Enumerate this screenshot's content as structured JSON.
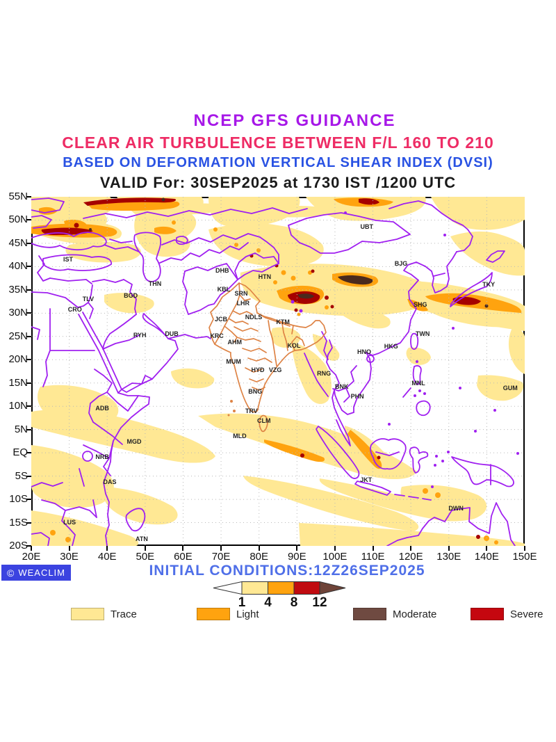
{
  "header": {
    "line1": {
      "text": "NCEP GFS GUIDANCE",
      "color": "#A718E8"
    },
    "line2": {
      "text": "CLEAR AIR TURBULENCE BETWEEN F/L 160 TO 210",
      "color": "#EE2C65"
    },
    "line3": {
      "text": "BASED ON DEFORMATION VERTICAL SHEAR INDEX (DVSI)",
      "color": "#2952E3"
    },
    "line4": {
      "text": "VALID For: 30SEP2025 at 1730 IST /1200 UTC",
      "color": "#1a1a1a"
    }
  },
  "footer": {
    "logo_symbol": "©",
    "logo_text": "WEACLIM",
    "logo_bg": "#3B43E0",
    "initial_conditions": "INITIAL CONDITIONS:12Z26SEP2025",
    "initial_conditions_color": "#4F6FE8"
  },
  "colorbar": {
    "tick_values": [
      "1",
      "4",
      "8",
      "12"
    ],
    "segment_colors": [
      "#ffffff",
      "#FFE894",
      "#FFA30F",
      "#C00B10",
      "#6E4338"
    ]
  },
  "legend": {
    "items": [
      {
        "label": "Trace",
        "color": "#FFE894"
      },
      {
        "label": "Light",
        "color": "#FFA30F"
      },
      {
        "label": "Moderate",
        "color": "#6F4A41"
      },
      {
        "label": "Severe",
        "color": "#C5070F"
      }
    ]
  },
  "map_colors": {
    "border": "#A020F0",
    "south_asia_border": "#DE8345",
    "trace": "#FFE894",
    "light": "#FFA30F",
    "severe_core": "#A50000",
    "moderate_core": "#4A2A1D",
    "grid": "#B8B8B8",
    "frame": "#000000",
    "station_text": "#222222"
  },
  "chart_data": {
    "type": "heatmap",
    "title": "NCEP GFS GUIDANCE",
    "subtitle": "CLEAR AIR TURBULENCE BETWEEN F/L 160 TO 210",
    "method": "BASED ON DEFORMATION VERTICAL SHEAR INDEX (DVSI)",
    "valid": "VALID For: 30SEP2025 at 1730 IST /1200 UTC",
    "initial_conditions": "12Z26SEP2025",
    "legend_position": "bottom",
    "grid": true,
    "x_axis": {
      "unit": "degrees East",
      "range": [
        20,
        150
      ],
      "ticks": [
        {
          "label": "20E",
          "value": 20
        },
        {
          "label": "30E",
          "value": 30
        },
        {
          "label": "40E",
          "value": 40
        },
        {
          "label": "50E",
          "value": 50
        },
        {
          "label": "60E",
          "value": 60
        },
        {
          "label": "70E",
          "value": 70
        },
        {
          "label": "80E",
          "value": 80
        },
        {
          "label": "90E",
          "value": 90
        },
        {
          "label": "100E",
          "value": 100
        },
        {
          "label": "110E",
          "value": 110
        },
        {
          "label": "120E",
          "value": 120
        },
        {
          "label": "130E",
          "value": 130
        },
        {
          "label": "140E",
          "value": 140
        },
        {
          "label": "150E",
          "value": 150
        }
      ]
    },
    "y_axis": {
      "unit": "degrees North",
      "range": [
        -20,
        55
      ],
      "ticks": [
        {
          "label": "55N",
          "value": 55
        },
        {
          "label": "50N",
          "value": 50
        },
        {
          "label": "45N",
          "value": 45
        },
        {
          "label": "40N",
          "value": 40
        },
        {
          "label": "35N",
          "value": 35
        },
        {
          "label": "30N",
          "value": 30
        },
        {
          "label": "25N",
          "value": 25
        },
        {
          "label": "20N",
          "value": 20
        },
        {
          "label": "15N",
          "value": 15
        },
        {
          "label": "10N",
          "value": 10
        },
        {
          "label": "5N",
          "value": 5
        },
        {
          "label": "EQ",
          "value": 0
        },
        {
          "label": "5S",
          "value": -5
        },
        {
          "label": "10S",
          "value": -10
        },
        {
          "label": "15S",
          "value": -15
        },
        {
          "label": "20S",
          "value": -20
        }
      ]
    },
    "intensity_scale": {
      "values": [
        1,
        4,
        8,
        12
      ],
      "categories": [
        "Trace",
        "Light",
        "Moderate",
        "Severe"
      ]
    },
    "stations": [
      {
        "code": "IST",
        "lon": 29.7,
        "lat": 41.6
      },
      {
        "code": "CRO",
        "lon": 31.5,
        "lat": 30.8
      },
      {
        "code": "TLV",
        "lon": 35.0,
        "lat": 33.0
      },
      {
        "code": "BGD",
        "lon": 46.2,
        "lat": 33.8
      },
      {
        "code": "THN",
        "lon": 52.6,
        "lat": 36.3
      },
      {
        "code": "RYH",
        "lon": 48.6,
        "lat": 25.3
      },
      {
        "code": "DUB",
        "lon": 57.0,
        "lat": 25.6
      },
      {
        "code": "DHB",
        "lon": 70.3,
        "lat": 39.2
      },
      {
        "code": "KBL",
        "lon": 70.7,
        "lat": 35.1
      },
      {
        "code": "SRN",
        "lon": 75.3,
        "lat": 34.2
      },
      {
        "code": "LHR",
        "lon": 75.8,
        "lat": 32.1
      },
      {
        "code": "HTN",
        "lon": 81.5,
        "lat": 37.8
      },
      {
        "code": "UBT",
        "lon": 108.4,
        "lat": 48.6
      },
      {
        "code": "BJG",
        "lon": 117.4,
        "lat": 40.7
      },
      {
        "code": "TKY",
        "lon": 140.5,
        "lat": 36.2
      },
      {
        "code": "SHG",
        "lon": 122.5,
        "lat": 31.8
      },
      {
        "code": "TWN",
        "lon": 123.1,
        "lat": 25.6
      },
      {
        "code": "HKG",
        "lon": 114.8,
        "lat": 22.9
      },
      {
        "code": "HNO",
        "lon": 107.7,
        "lat": 21.7
      },
      {
        "code": "JCB",
        "lon": 70.0,
        "lat": 28.7
      },
      {
        "code": "NDLS",
        "lon": 78.6,
        "lat": 29.2
      },
      {
        "code": "KTM",
        "lon": 86.3,
        "lat": 28.1
      },
      {
        "code": "KRC",
        "lon": 68.9,
        "lat": 25.1
      },
      {
        "code": "AHM",
        "lon": 73.6,
        "lat": 23.8
      },
      {
        "code": "KOL",
        "lon": 89.2,
        "lat": 23.0
      },
      {
        "code": "MUM",
        "lon": 73.3,
        "lat": 19.6
      },
      {
        "code": "HYD",
        "lon": 79.7,
        "lat": 17.8
      },
      {
        "code": "VZG",
        "lon": 84.3,
        "lat": 17.8
      },
      {
        "code": "RNG",
        "lon": 97.1,
        "lat": 17.0
      },
      {
        "code": "BNK",
        "lon": 101.8,
        "lat": 14.2
      },
      {
        "code": "PHN",
        "lon": 105.9,
        "lat": 12.1
      },
      {
        "code": "MNL",
        "lon": 122.0,
        "lat": 14.9
      },
      {
        "code": "GUM",
        "lon": 146.2,
        "lat": 13.9
      },
      {
        "code": "BNG",
        "lon": 79.0,
        "lat": 13.2
      },
      {
        "code": "TRV",
        "lon": 78.0,
        "lat": 9.0
      },
      {
        "code": "CLM",
        "lon": 81.3,
        "lat": 6.9
      },
      {
        "code": "MLD",
        "lon": 74.9,
        "lat": 3.6
      },
      {
        "code": "ADB",
        "lon": 38.7,
        "lat": 9.6
      },
      {
        "code": "MGD",
        "lon": 47.1,
        "lat": 2.4
      },
      {
        "code": "NRB",
        "lon": 38.7,
        "lat": -0.9
      },
      {
        "code": "DAS",
        "lon": 40.7,
        "lat": -6.3
      },
      {
        "code": "LUS",
        "lon": 30.1,
        "lat": -14.9
      },
      {
        "code": "ATN",
        "lon": 49.1,
        "lat": -18.5
      },
      {
        "code": "JKT",
        "lon": 108.2,
        "lat": -5.8
      },
      {
        "code": "DWN",
        "lon": 131.9,
        "lat": -11.9
      }
    ]
  }
}
